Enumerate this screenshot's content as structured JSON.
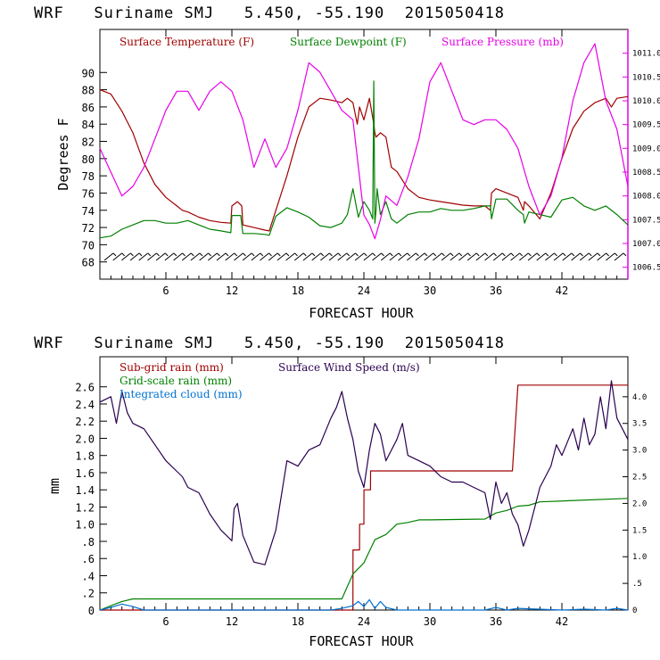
{
  "chart_data": [
    {
      "type": "line",
      "title": "WRF   Suriname SMJ   5.450, -55.190  2015050418",
      "xlabel": "FORECAST HOUR",
      "ylabel": "Degrees F",
      "y2label": "",
      "xlim": [
        0,
        48
      ],
      "ylim": [
        66,
        95
      ],
      "y2lim": [
        1006.25,
        1011.5
      ],
      "xticks": [
        6,
        12,
        18,
        24,
        30,
        36,
        42
      ],
      "xtick_labels": [
        "6",
        "12",
        "18",
        "24",
        "30",
        "36",
        "42"
      ],
      "yticks": [
        68,
        70,
        72,
        74,
        76,
        78,
        80,
        82,
        84,
        86,
        88,
        90
      ],
      "ytick_labels": [
        "68",
        "70",
        "72",
        "74",
        "76",
        "78",
        "80",
        "82",
        "84",
        "86",
        "88",
        "90"
      ],
      "y2ticks": [
        1006.5,
        1007.0,
        1007.5,
        1008.0,
        1008.5,
        1009.0,
        1009.5,
        1010.0,
        1010.5,
        1011.0
      ],
      "y2tick_labels": [
        "1006.5",
        "1007.0",
        "1007.5",
        "1008.0",
        "1008.5",
        "1009.0",
        "1009.5",
        "1010.0",
        "1010.5",
        "1011.0"
      ],
      "wind_barbs_y": 68.6,
      "wind_barb_count": 60,
      "series": [
        {
          "name": "Surface Temperature (F)",
          "color": "#a00000",
          "axis": "left",
          "x": [
            0,
            1,
            2,
            3,
            4,
            5,
            6,
            7,
            7.5,
            8,
            9,
            10,
            11,
            11.9,
            12,
            12.5,
            12.9,
            13,
            14,
            15,
            15.4,
            16,
            17,
            18,
            19,
            20,
            21,
            22,
            22.5,
            23,
            23.4,
            23.6,
            24,
            24.5,
            24.9,
            25,
            25.1,
            25.5,
            26,
            26.5,
            27,
            28,
            29,
            30,
            31,
            32,
            33,
            34,
            35,
            35.5,
            35.6,
            36,
            37,
            38,
            38.5,
            38.6,
            39,
            40,
            41,
            42,
            43,
            44,
            45,
            46,
            46.5,
            47,
            48
          ],
          "values": [
            88,
            87.5,
            85.5,
            83,
            79.5,
            77,
            75.5,
            74.5,
            74,
            73.8,
            73.2,
            72.8,
            72.6,
            72.5,
            74.5,
            75,
            74.5,
            72.3,
            72,
            71.7,
            71.6,
            74,
            78,
            82.5,
            86,
            87,
            86.8,
            86.5,
            87,
            86.5,
            84,
            86,
            84.5,
            87,
            84,
            83,
            82.5,
            83,
            82.5,
            79,
            78.5,
            76.5,
            75.5,
            75.2,
            75,
            74.8,
            74.6,
            74.5,
            74.5,
            74,
            76,
            76.5,
            76,
            75.5,
            74,
            75,
            74.5,
            73,
            76,
            80,
            83.5,
            85.5,
            86.5,
            87,
            86,
            87,
            87.2
          ]
        },
        {
          "name": "Surface Dewpoint (F)",
          "color": "#008000",
          "axis": "left",
          "x": [
            0,
            1,
            2,
            3,
            4,
            5,
            6,
            7,
            8,
            9,
            10,
            11,
            11.9,
            12,
            12.8,
            13,
            14,
            15,
            15.4,
            16,
            17,
            18,
            19,
            20,
            21,
            22,
            22.5,
            23,
            23.5,
            24,
            24.5,
            24.8,
            24.9,
            25,
            25.1,
            25.2,
            25.5,
            26,
            26.5,
            27,
            28,
            29,
            30,
            31,
            32,
            33,
            34,
            35,
            35.5,
            35.6,
            36,
            37,
            38,
            38.5,
            38.6,
            39,
            40,
            41,
            42,
            43,
            44,
            45,
            46,
            47,
            48
          ],
          "values": [
            70.8,
            71,
            71.8,
            72.3,
            72.8,
            72.8,
            72.5,
            72.5,
            72.8,
            72.3,
            71.8,
            71.6,
            71.4,
            73.4,
            73.4,
            71.3,
            71.3,
            71.2,
            71.1,
            73.3,
            74.3,
            73.8,
            73.2,
            72.2,
            72,
            72.5,
            73.5,
            76.5,
            73.2,
            75,
            74,
            73,
            89,
            72.5,
            74,
            76.5,
            73.5,
            75,
            73,
            72.5,
            73.5,
            73.8,
            73.8,
            74.2,
            74,
            74,
            74.2,
            74.5,
            74.5,
            73,
            75.3,
            75.3,
            74,
            73.5,
            72.5,
            73.8,
            73.5,
            73.2,
            75.2,
            75.5,
            74.5,
            74,
            74.5,
            73.5,
            72.3
          ]
        },
        {
          "name": "Surface Pressure (mb)",
          "color": "#e600e6",
          "axis": "right",
          "x": [
            0,
            1,
            2,
            3,
            4,
            5,
            6,
            7,
            8,
            9,
            10,
            11,
            12,
            13,
            14,
            15,
            16,
            17,
            18,
            19,
            20,
            21,
            22,
            23,
            24,
            24.5,
            25,
            25.5,
            26,
            27,
            28,
            29,
            30,
            31,
            32,
            33,
            34,
            35,
            36,
            37,
            38,
            39,
            40,
            41,
            42,
            43,
            44,
            45,
            46,
            47,
            48
          ],
          "values": [
            1009.0,
            1008.5,
            1008.0,
            1008.2,
            1008.6,
            1009.2,
            1009.8,
            1010.2,
            1010.2,
            1009.8,
            1010.2,
            1010.4,
            1010.2,
            1009.6,
            1008.6,
            1009.2,
            1008.6,
            1009.0,
            1009.8,
            1010.8,
            1010.6,
            1010.2,
            1009.8,
            1009.6,
            1007.6,
            1007.4,
            1007.1,
            1007.5,
            1008.0,
            1007.8,
            1008.4,
            1009.2,
            1010.4,
            1010.8,
            1010.2,
            1009.6,
            1009.5,
            1009.6,
            1009.6,
            1009.4,
            1009.0,
            1008.2,
            1007.6,
            1008.0,
            1008.8,
            1010.0,
            1010.8,
            1011.2,
            1010.0,
            1009.4,
            1008.2
          ]
        }
      ],
      "legend": [
        "Surface Temperature (F)",
        "Surface Dewpoint (F)",
        "Surface Pressure (mb)"
      ]
    },
    {
      "type": "line",
      "title": "WRF   Suriname SMJ   5.450, -55.190  2015050418",
      "xlabel": "FORECAST HOUR",
      "ylabel": "mm",
      "xlim": [
        0,
        48
      ],
      "ylim": [
        0,
        2.95
      ],
      "y2lim": [
        0,
        4.75
      ],
      "xticks": [
        6,
        12,
        18,
        24,
        30,
        36,
        42
      ],
      "xtick_labels": [
        "6",
        "12",
        "18",
        "24",
        "30",
        "36",
        "42"
      ],
      "yticks": [
        0,
        0.2,
        0.4,
        0.6,
        0.8,
        1.0,
        1.2,
        1.4,
        1.6,
        1.8,
        2.0,
        2.2,
        2.4,
        2.6
      ],
      "ytick_labels": [
        "0",
        ".2",
        ".4",
        ".6",
        ".8",
        "1.0",
        "1.2",
        "1.4",
        "1.6",
        "1.8",
        "2.0",
        "2.2",
        "2.4",
        "2.6"
      ],
      "y2ticks": [
        0,
        0.5,
        1.0,
        1.5,
        2.0,
        2.5,
        3.0,
        3.5,
        4.0
      ],
      "y2tick_labels": [
        "0",
        ".5",
        "1.0",
        "1.5",
        "2.0",
        "2.5",
        "3.0",
        "3.5",
        "4.0"
      ],
      "series": [
        {
          "name": "Sub-grid rain (mm)",
          "color": "#a00000",
          "axis": "left",
          "x": [
            0,
            22.5,
            23,
            23.01,
            23.6,
            23.61,
            24,
            24.01,
            24.6,
            24.61,
            36,
            37.5,
            38,
            48
          ],
          "values": [
            0,
            0,
            0,
            0.7,
            0.7,
            1.0,
            1.0,
            1.4,
            1.4,
            1.62,
            1.62,
            1.62,
            2.62,
            2.62
          ]
        },
        {
          "name": "Grid-scale rain (mm)",
          "color": "#008000",
          "axis": "left",
          "x": [
            0,
            1,
            2,
            3,
            22,
            23,
            24,
            25,
            26,
            27,
            28,
            29,
            30,
            35,
            36,
            37,
            38,
            39,
            40,
            48
          ],
          "values": [
            0,
            0.05,
            0.1,
            0.13,
            0.13,
            0.42,
            0.55,
            0.82,
            0.88,
            1.0,
            1.02,
            1.05,
            1.05,
            1.06,
            1.13,
            1.16,
            1.21,
            1.22,
            1.26,
            1.3
          ]
        },
        {
          "name": "Integrated cloud (mm)",
          "color": "#0070d0",
          "axis": "left",
          "x": [
            0,
            1,
            2,
            3,
            4,
            5,
            21,
            22,
            23,
            23.5,
            24,
            24.5,
            25,
            25.5,
            26,
            27,
            30,
            35,
            36,
            37,
            38,
            42,
            44,
            46,
            47,
            48
          ],
          "values": [
            0,
            0.03,
            0.07,
            0.04,
            0,
            0,
            0,
            0.02,
            0.05,
            0.1,
            0.04,
            0.12,
            0.02,
            0.1,
            0.03,
            0,
            0,
            0,
            0.03,
            0,
            0.02,
            0,
            0.01,
            0,
            0.02,
            0
          ]
        },
        {
          "name": "Surface Wind Speed (m/s)",
          "color": "#2a0050",
          "axis": "right",
          "x": [
            0,
            1,
            1.5,
            2,
            2.5,
            3,
            4,
            5,
            6,
            7,
            7.5,
            8,
            9,
            9.5,
            10,
            11,
            12,
            12.2,
            12.5,
            13,
            14,
            15,
            16,
            17,
            18,
            19,
            20,
            21,
            21.5,
            22,
            22.5,
            23,
            23.5,
            24,
            24.5,
            25,
            25.5,
            26,
            27,
            27.5,
            28,
            29,
            30,
            31,
            32,
            33,
            34,
            35,
            35.5,
            36,
            36.5,
            37,
            37.5,
            38,
            38.5,
            39,
            39.5,
            40,
            41,
            41.5,
            42,
            43,
            43.5,
            44,
            44.5,
            45,
            45.5,
            46,
            46.5,
            47,
            48
          ],
          "values": [
            3.9,
            4.0,
            3.5,
            4.1,
            3.7,
            3.5,
            3.4,
            3.1,
            2.8,
            2.6,
            2.5,
            2.3,
            2.2,
            2.0,
            1.8,
            1.5,
            1.3,
            1.9,
            2.0,
            1.4,
            0.9,
            0.85,
            1.5,
            2.8,
            2.7,
            3.0,
            3.1,
            3.6,
            3.8,
            4.1,
            3.6,
            3.2,
            2.6,
            2.3,
            3.0,
            3.5,
            3.3,
            2.8,
            3.2,
            3.5,
            2.9,
            2.8,
            2.7,
            2.5,
            2.4,
            2.4,
            2.3,
            2.2,
            1.7,
            2.4,
            2.0,
            2.2,
            1.8,
            1.6,
            1.2,
            1.5,
            1.9,
            2.3,
            2.7,
            3.1,
            2.9,
            3.4,
            3.0,
            3.6,
            3.1,
            3.3,
            4.0,
            3.4,
            4.3,
            3.6,
            3.2
          ]
        }
      ],
      "legend": [
        "Sub-grid rain (mm)",
        "Surface Wind Speed (m/s)",
        "Grid-scale rain (mm)",
        "Integrated cloud (mm)"
      ]
    }
  ]
}
